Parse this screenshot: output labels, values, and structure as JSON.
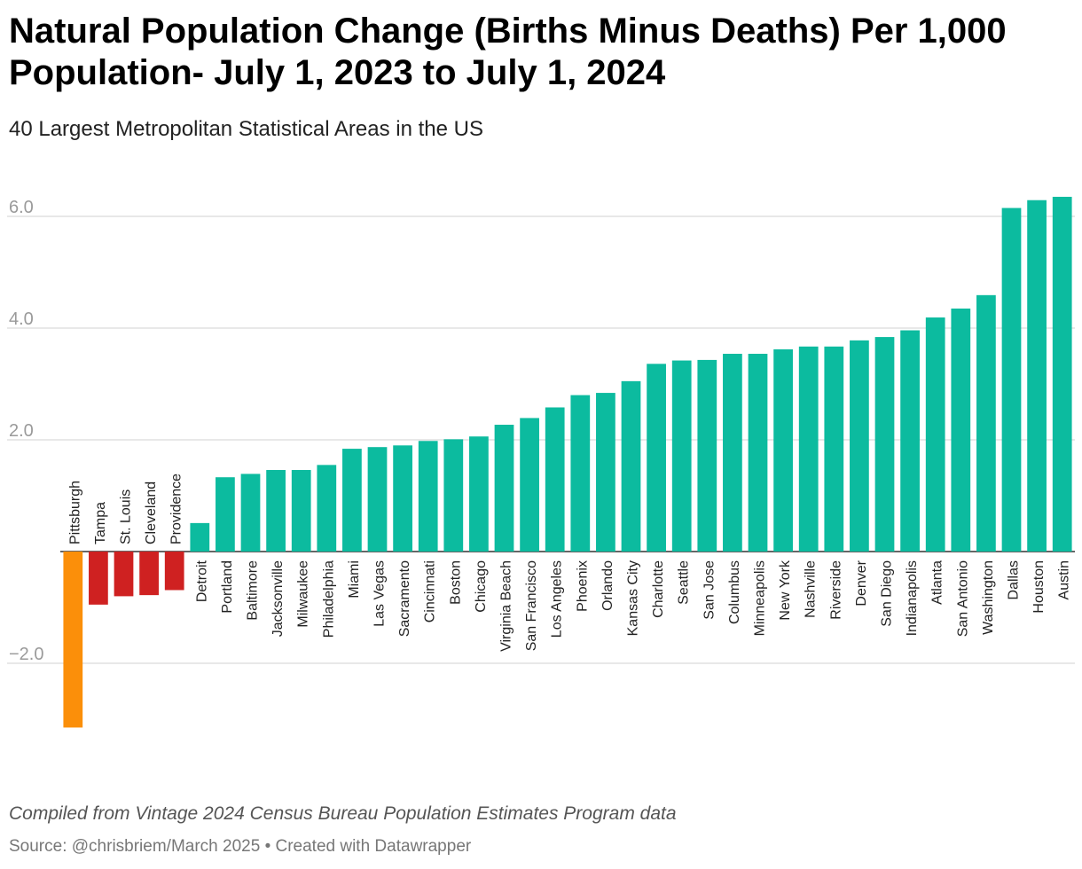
{
  "title": "Natural Population Change (Births Minus Deaths) Per 1,000 Population- July 1, 2023 to July 1, 2024",
  "subtitle": "40 Largest Metropolitan Statistical Areas in the US",
  "footer": {
    "note": "Compiled from Vintage 2024 Census Bureau Population Estimates Program data",
    "source": "Source: @chrisbriem/March 2025 • Created with Datawrapper"
  },
  "colors": {
    "highlight": "#fb8f0a",
    "negative": "#cf2121",
    "positive": "#0cbb9f",
    "grid": "#e0e0e0",
    "tick_text": "#9a9a9a",
    "label_text": "#222222"
  },
  "chart_data": {
    "type": "bar",
    "title": "Natural Population Change (Births Minus Deaths) Per 1,000 Population- July 1, 2023 to July 1, 2024",
    "xlabel": "",
    "ylabel": "",
    "ylim": [
      -3.2,
      6.6
    ],
    "yticks": [
      -2.0,
      2.0,
      4.0,
      6.0
    ],
    "ytick_labels": [
      "−2.0",
      "2.0",
      "4.0",
      "6.0"
    ],
    "grid": true,
    "categories": [
      "Pittsburgh",
      "Tampa",
      "St. Louis",
      "Cleveland",
      "Providence",
      "Detroit",
      "Portland",
      "Baltimore",
      "Jacksonville",
      "Milwaukee",
      "Philadelphia",
      "Miami",
      "Las Vegas",
      "Sacramento",
      "Cincinnati",
      "Boston",
      "Chicago",
      "Virginia Beach",
      "San Francisco",
      "Los Angeles",
      "Phoenix",
      "Orlando",
      "Kansas City",
      "Charlotte",
      "Seattle",
      "San Jose",
      "Columbus",
      "Minneapolis",
      "New York",
      "Nashville",
      "Riverside",
      "Denver",
      "San Diego",
      "Indianapolis",
      "Atlanta",
      "San Antonio",
      "Washington",
      "Dallas",
      "Houston",
      "Austin"
    ],
    "values": [
      -3.15,
      -0.95,
      -0.8,
      -0.78,
      -0.69,
      0.51,
      1.33,
      1.39,
      1.46,
      1.46,
      1.55,
      1.84,
      1.87,
      1.9,
      1.98,
      2.01,
      2.06,
      2.27,
      2.39,
      2.58,
      2.8,
      2.84,
      3.05,
      3.36,
      3.42,
      3.43,
      3.54,
      3.54,
      3.62,
      3.67,
      3.67,
      3.78,
      3.84,
      3.96,
      4.19,
      4.35,
      4.59,
      6.15,
      6.29,
      6.35
    ],
    "highlight": "Pittsburgh"
  }
}
